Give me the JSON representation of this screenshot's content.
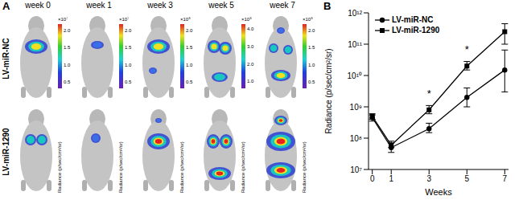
{
  "panel_a": {
    "label": "A",
    "columns": [
      "week 0",
      "week 1",
      "week 3",
      "week 5",
      "week 7"
    ],
    "rows": [
      "LV-miR-NC",
      "LV-miR-1290"
    ],
    "color_bar_title": "Radiance (p/sec/cm²/sr)",
    "color_bars": [
      {
        "multiplier": "×10⁷",
        "range": [
          0.3,
          2.2
        ],
        "ticks": [
          {
            "value": 0.5,
            "label": "0.5"
          },
          {
            "value": 1,
            "label": "1.0"
          },
          {
            "value": 1.5,
            "label": "1.5"
          },
          {
            "value": 2,
            "label": "2.0"
          }
        ]
      },
      {
        "multiplier": "×10⁷",
        "range": [
          0.3,
          2.2
        ],
        "ticks": [
          {
            "value": 0.5,
            "label": "0.5"
          },
          {
            "value": 1,
            "label": "1.0"
          },
          {
            "value": 1.5,
            "label": "1.5"
          },
          {
            "value": 2,
            "label": "2.0"
          }
        ]
      },
      {
        "multiplier": "×10⁸",
        "range": [
          0.3,
          2.2
        ],
        "ticks": [
          {
            "value": 0.5,
            "label": "0.5"
          },
          {
            "value": 1,
            "label": "1.0"
          },
          {
            "value": 1.5,
            "label": "1.5"
          },
          {
            "value": 2,
            "label": "2.0"
          }
        ]
      },
      {
        "multiplier": "×10⁸",
        "range": [
          0.6,
          4.3
        ],
        "ticks": [
          {
            "value": 1,
            "label": "1.0"
          },
          {
            "value": 2,
            "label": "2.0"
          },
          {
            "value": 3,
            "label": "3.0"
          },
          {
            "value": 4,
            "label": "4.0"
          }
        ]
      },
      {
        "multiplier": "×10⁸",
        "range": [
          0.3,
          2.2
        ],
        "ticks": [
          {
            "value": 0.5,
            "label": "0.5"
          },
          {
            "value": 1,
            "label": "1.0"
          },
          {
            "value": 1.5,
            "label": "1.5"
          },
          {
            "value": 2,
            "label": "2.0"
          }
        ]
      }
    ]
  },
  "chart_data": {
    "type": "line",
    "panel": "B",
    "x_label": "Weeks",
    "y_label": "Radiance (p/sec/cm²/sr)",
    "log": "y",
    "legend": "upper left",
    "xlim": [
      -0.2,
      7.2
    ],
    "xticks": [
      0,
      1,
      3,
      5,
      7
    ],
    "ylim": [
      10000000,
      1000000000000
    ],
    "yticks": [
      {
        "value": 10000000,
        "label": "10⁷"
      },
      {
        "value": 100000000,
        "label": "10⁸"
      },
      {
        "value": 1000000000,
        "label": "10⁹"
      },
      {
        "value": 10000000000,
        "label": "10¹⁰"
      },
      {
        "value": 100000000000,
        "label": "10¹¹"
      },
      {
        "value": 1000000000000,
        "label": "10¹²"
      }
    ],
    "x": [
      0,
      1,
      3,
      5,
      7
    ],
    "series": [
      {
        "name": "LV-miR-NC",
        "color": "#000000",
        "marker": "circle",
        "values": [
          450000000,
          50000000,
          200000000,
          2000000000,
          15000000000
        ],
        "errors": [
          [
            100000000,
            100000000
          ],
          [
            15000000,
            20000000
          ],
          [
            50000000,
            100000000
          ],
          [
            1000000000,
            2000000000
          ],
          [
            12000000000,
            50000000000
          ]
        ]
      },
      {
        "name": "LV-miR-1290",
        "color": "#000000",
        "marker": "square",
        "values": [
          500000000,
          60000000,
          800000000,
          20000000000,
          250000000000
        ],
        "errors": [
          [
            100000000,
            100000000
          ],
          [
            10000000,
            20000000
          ],
          [
            200000000,
            300000000
          ],
          [
            5000000000,
            8000000000
          ],
          [
            150000000000,
            200000000000
          ]
        ]
      }
    ],
    "annotations": [
      {
        "x": 3,
        "y": 1500000000,
        "text": "*"
      },
      {
        "x": 5,
        "y": 40000000000,
        "text": "*"
      }
    ]
  }
}
